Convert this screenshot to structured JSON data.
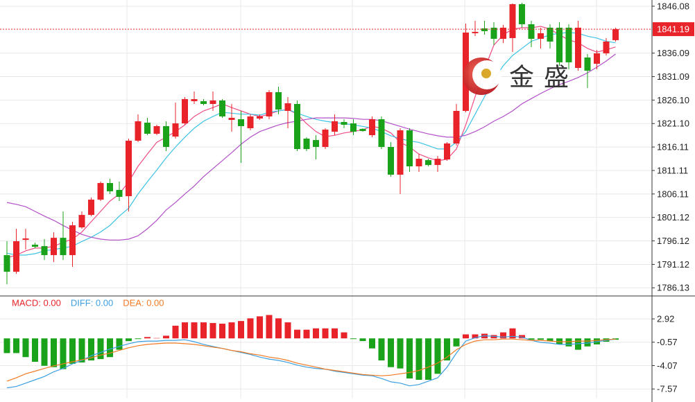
{
  "watermark": "金 盛",
  "chart_data": [
    {
      "type": "candlestick",
      "up_color": "#e8232a",
      "down_color": "#1aa31a",
      "open": [
        1793.09,
        1789.55,
        1796.34,
        1795.31,
        1795.01,
        1793.09,
        1796.78,
        1793.09,
        1799.0,
        1801.65,
        1804.9,
        1808.44,
        1806.97,
        1805.64,
        1817.45,
        1821.29,
        1818.93,
        1820.55,
        1818.33,
        1821.14,
        1825.86,
        1825.86,
        1825.27,
        1826.01,
        1821.88,
        1822.02,
        1820.1,
        1822.17,
        1822.61,
        1827.78,
        1823.79,
        1825.27,
        1817.89,
        1817.59,
        1816.12,
        1819.37,
        1821.43,
        1821.14,
        1819.96,
        1818.63,
        1822.02,
        1816.12,
        1810.21,
        1819.66,
        1811.99,
        1813.31,
        1812.28,
        1813.46,
        1816.86,
        1823.79,
        1840.33,
        1841.36,
        1841.51,
        1839.14,
        1839.29,
        1846.52,
        1842.24,
        1839.14,
        1841.51,
        1841.51,
        1841.51,
        1832.94,
        1835.16,
        1833.83,
        1836.04,
        1838.85
      ],
      "high": [
        1796.05,
        1798.7,
        1798.7,
        1795.75,
        1796.49,
        1797.96,
        1802.39,
        1800.18,
        1802.39,
        1805.35,
        1808.74,
        1809.33,
        1808.74,
        1817.89,
        1823.06,
        1822.32,
        1820.84,
        1821.58,
        1825.56,
        1826.75,
        1827.93,
        1826.3,
        1827.93,
        1826.3,
        1825.27,
        1823.79,
        1823.06,
        1823.06,
        1828.22,
        1828.96,
        1826.75,
        1826.01,
        1818.19,
        1818.63,
        1820.1,
        1823.06,
        1822.02,
        1822.02,
        1820.1,
        1822.61,
        1822.61,
        1817.15,
        1820.1,
        1820.1,
        1814.64,
        1813.61,
        1814.2,
        1817.15,
        1825.27,
        1842.39,
        1842.98,
        1842.98,
        1842.69,
        1842.1,
        1846.67,
        1846.82,
        1842.98,
        1841.51,
        1842.24,
        1842.69,
        1842.24,
        1842.98,
        1835.9,
        1836.78,
        1839.29,
        1841.51
      ],
      "low": [
        1786.89,
        1789.11,
        1794.28,
        1794.57,
        1792.06,
        1791.62,
        1792.06,
        1790.59,
        1798.7,
        1801.36,
        1804.61,
        1806.08,
        1804.61,
        1802.39,
        1817.15,
        1818.63,
        1818.63,
        1815.23,
        1817.89,
        1820.84,
        1825.27,
        1824.97,
        1823.79,
        1822.32,
        1819.37,
        1812.72,
        1819.66,
        1821.88,
        1822.02,
        1823.06,
        1820.1,
        1815.23,
        1815.23,
        1813.46,
        1815.67,
        1818.63,
        1820.1,
        1818.63,
        1819.37,
        1818.19,
        1815.67,
        1809.77,
        1806.08,
        1810.81,
        1810.81,
        1811.99,
        1810.81,
        1813.17,
        1816.41,
        1823.5,
        1839.73,
        1840.03,
        1837.82,
        1838.26,
        1836.34,
        1841.51,
        1837.37,
        1837.08,
        1837.08,
        1833.39,
        1832.65,
        1832.35,
        1828.66,
        1832.65,
        1835.6,
        1838.55
      ],
      "close": [
        1789.55,
        1796.05,
        1796.64,
        1794.87,
        1793.09,
        1796.78,
        1793.09,
        1799.44,
        1801.65,
        1804.9,
        1808.44,
        1806.67,
        1805.49,
        1817.45,
        1821.58,
        1818.93,
        1820.55,
        1816.12,
        1821.14,
        1826.3,
        1826.3,
        1825.27,
        1826.01,
        1822.61,
        1822.32,
        1820.55,
        1822.61,
        1822.61,
        1827.78,
        1824.09,
        1825.42,
        1815.67,
        1815.67,
        1816.12,
        1819.81,
        1821.58,
        1820.84,
        1819.37,
        1819.51,
        1822.02,
        1816.12,
        1810.21,
        1819.66,
        1811.99,
        1813.61,
        1812.28,
        1813.61,
        1816.86,
        1823.79,
        1840.47,
        1840.62,
        1840.77,
        1839.14,
        1841.51,
        1846.52,
        1842.24,
        1839.14,
        1840.33,
        1838.55,
        1834.13,
        1834.13,
        1841.51,
        1832.35,
        1836.04,
        1838.55,
        1841.19
      ],
      "lines": [
        {
          "color": "#ee4d86",
          "values": [
            1792.5,
            1793.1,
            1794.0,
            1794.6,
            1794.6,
            1795.0,
            1795.8,
            1796.5,
            1798.0,
            1800.2,
            1802.4,
            1804.6,
            1806.1,
            1808.7,
            1812.0,
            1814.6,
            1817.1,
            1818.2,
            1819.4,
            1820.8,
            1822.6,
            1823.8,
            1824.5,
            1825.3,
            1824.5,
            1823.8,
            1823.1,
            1822.6,
            1823.1,
            1823.8,
            1824.1,
            1823.1,
            1821.1,
            1819.4,
            1818.3,
            1818.6,
            1819.1,
            1819.4,
            1819.8,
            1820.5,
            1820.1,
            1819.1,
            1817.1,
            1816.1,
            1814.6,
            1813.8,
            1813.2,
            1813.5,
            1815.7,
            1820.8,
            1826.8,
            1832.7,
            1837.8,
            1840.0,
            1841.2,
            1841.5,
            1841.5,
            1841.8,
            1841.2,
            1840.0,
            1838.9,
            1838.3,
            1837.1,
            1836.3,
            1836.8,
            1837.4
          ]
        },
        {
          "color": "#3cc3e6",
          "values": [
            1793.5,
            1793.1,
            1793.1,
            1793.4,
            1794.0,
            1794.3,
            1794.6,
            1795.0,
            1796.0,
            1796.9,
            1798.0,
            1799.4,
            1801.4,
            1803.1,
            1806.1,
            1808.7,
            1811.2,
            1813.8,
            1816.1,
            1818.2,
            1820.1,
            1821.6,
            1822.6,
            1823.5,
            1823.3,
            1823.1,
            1823.1,
            1822.9,
            1823.5,
            1823.8,
            1824.1,
            1823.3,
            1822.6,
            1822.0,
            1821.6,
            1821.3,
            1821.1,
            1820.8,
            1820.5,
            1820.1,
            1819.4,
            1818.5,
            1817.9,
            1817.4,
            1817.1,
            1816.4,
            1815.7,
            1815.7,
            1817.1,
            1819.4,
            1823.1,
            1826.8,
            1830.4,
            1833.4,
            1835.6,
            1837.1,
            1838.6,
            1839.3,
            1840.0,
            1840.3,
            1840.5,
            1840.3,
            1839.7,
            1839.3,
            1838.6,
            1838.3
          ]
        },
        {
          "color": "#b24fc8",
          "values": [
            1804.3,
            1803.9,
            1803.4,
            1802.4,
            1801.4,
            1800.5,
            1799.4,
            1798.4,
            1797.5,
            1796.9,
            1796.5,
            1796.3,
            1796.3,
            1796.5,
            1797.2,
            1798.7,
            1800.5,
            1802.7,
            1804.3,
            1806.1,
            1807.8,
            1809.8,
            1811.5,
            1813.2,
            1814.9,
            1816.7,
            1818.2,
            1819.4,
            1820.1,
            1820.8,
            1821.3,
            1821.6,
            1822.0,
            1822.3,
            1822.3,
            1822.3,
            1822.3,
            1822.2,
            1822.0,
            1822.0,
            1821.7,
            1821.1,
            1820.5,
            1819.9,
            1819.4,
            1818.9,
            1818.5,
            1818.2,
            1818.2,
            1818.6,
            1819.4,
            1820.4,
            1821.6,
            1822.6,
            1823.8,
            1825.3,
            1826.4,
            1827.5,
            1828.5,
            1829.4,
            1830.1,
            1830.9,
            1831.9,
            1833.1,
            1834.4,
            1835.9
          ]
        }
      ],
      "last_price": 1841.19,
      "last_price_color": "#e8232a",
      "ylim": [
        1784.4,
        1847.4
      ],
      "yticks": [
        1846.08,
        1836.09,
        1831.09,
        {
          "value": 1826.1,
          "label": "1826.10"
        },
        {
          "value": 1821.1,
          "label": "1821.10"
        },
        1816.11,
        1811.11,
        1806.11,
        1801.12,
        1796.12,
        1791.12,
        1786.13
      ],
      "grid": true
    },
    {
      "type": "combo",
      "up_color": "#e8232a",
      "down_color": "#1aa31a",
      "series": [
        {
          "name": "MACD: 0.00",
          "type": "bar",
          "color": "#e8232a",
          "values": [
            -2.2,
            -2.2,
            -2.8,
            -3.5,
            -4.1,
            -4.3,
            -4.6,
            -3.8,
            -3.6,
            -3.3,
            -3.1,
            -2.8,
            -1.7,
            -0.4,
            -0.1,
            0.2,
            0.05,
            0.4,
            1.9,
            2.4,
            2.4,
            2.4,
            2.3,
            2.2,
            2.4,
            2.6,
            3.0,
            3.3,
            3.5,
            3.0,
            2.4,
            1.3,
            1.3,
            1.5,
            1.5,
            1.5,
            0.9,
            -0.1,
            -0.4,
            -1.5,
            -3.3,
            -4.3,
            -4.5,
            -6.0,
            -6.2,
            -6.2,
            -5.3,
            -3.3,
            -1.2,
            0.6,
            0.6,
            0.7,
            0.5,
            0.9,
            1.5,
            0.5,
            -0.2,
            -0.2,
            -0.4,
            -0.9,
            -1.2,
            -1.7,
            -1.2,
            -0.9,
            -0.5,
            -0.2
          ]
        },
        {
          "name": "DIFF: 0.00",
          "type": "line",
          "color": "#3a9fe0",
          "values": [
            -7.4,
            -7.2,
            -6.7,
            -6.2,
            -5.7,
            -5.0,
            -4.5,
            -3.8,
            -3.3,
            -2.6,
            -2.1,
            -1.6,
            -1.2,
            -0.8,
            -0.5,
            -0.4,
            -0.4,
            -0.3,
            -0.3,
            -0.2,
            -0.5,
            -0.9,
            -1.2,
            -1.5,
            -1.8,
            -2.1,
            -2.4,
            -2.8,
            -3.1,
            -3.3,
            -3.6,
            -4.0,
            -4.3,
            -4.5,
            -4.6,
            -4.9,
            -5.1,
            -5.3,
            -5.5,
            -5.6,
            -6.0,
            -6.5,
            -6.7,
            -7.1,
            -6.9,
            -6.4,
            -5.9,
            -4.3,
            -2.2,
            -0.4,
            0.1,
            0.4,
            0.3,
            0.2,
            0.3,
            0.2,
            -0.3,
            -0.6,
            -0.7,
            -0.9,
            -0.9,
            -0.8,
            -0.7,
            -0.5,
            -0.3,
            -0.1
          ]
        },
        {
          "name": "DEA: 0.00",
          "type": "line",
          "color": "#f07a22",
          "values": [
            -6.4,
            -5.9,
            -5.3,
            -4.9,
            -4.5,
            -4.1,
            -3.8,
            -3.5,
            -3.2,
            -2.9,
            -2.5,
            -2.2,
            -1.8,
            -1.4,
            -1.1,
            -0.9,
            -0.8,
            -0.7,
            -0.7,
            -0.8,
            -0.9,
            -1.1,
            -1.3,
            -1.5,
            -1.8,
            -2.0,
            -2.3,
            -2.5,
            -2.8,
            -3.0,
            -3.3,
            -3.7,
            -4.0,
            -4.3,
            -4.6,
            -4.8,
            -5.0,
            -5.2,
            -5.4,
            -5.5,
            -5.6,
            -5.5,
            -5.3,
            -5.1,
            -4.8,
            -4.3,
            -3.7,
            -2.8,
            -1.7,
            -0.9,
            -0.4,
            -0.2,
            -0.2,
            -0.1,
            -0.1,
            -0.2,
            -0.3,
            -0.3,
            -0.4,
            -0.5,
            -0.5,
            -0.4,
            -0.4,
            -0.3,
            -0.2,
            -0.1
          ]
        }
      ],
      "ylim": [
        -9.0,
        6.35
      ],
      "yticks": [
        2.92,
        -0.57,
        -4.07,
        -7.57
      ],
      "grid": true
    }
  ]
}
